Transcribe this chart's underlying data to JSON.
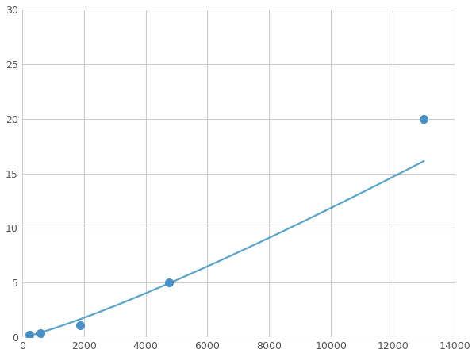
{
  "x_points": [
    250,
    600,
    1875,
    4750,
    13000
  ],
  "y_points": [
    0.2,
    0.4,
    1.1,
    5.0,
    20.0
  ],
  "line_color": "#5ba3c9",
  "marker_color": "#4a90c4",
  "marker_size": 7,
  "line_width": 1.6,
  "xlim": [
    0,
    14000
  ],
  "ylim": [
    0,
    30
  ],
  "xticks": [
    0,
    2000,
    4000,
    6000,
    8000,
    10000,
    12000,
    14000
  ],
  "yticks": [
    0,
    5,
    10,
    15,
    20,
    25,
    30
  ],
  "grid_color": "#cccccc",
  "background_color": "#ffffff",
  "figsize": [
    6.0,
    4.5
  ],
  "dpi": 100
}
